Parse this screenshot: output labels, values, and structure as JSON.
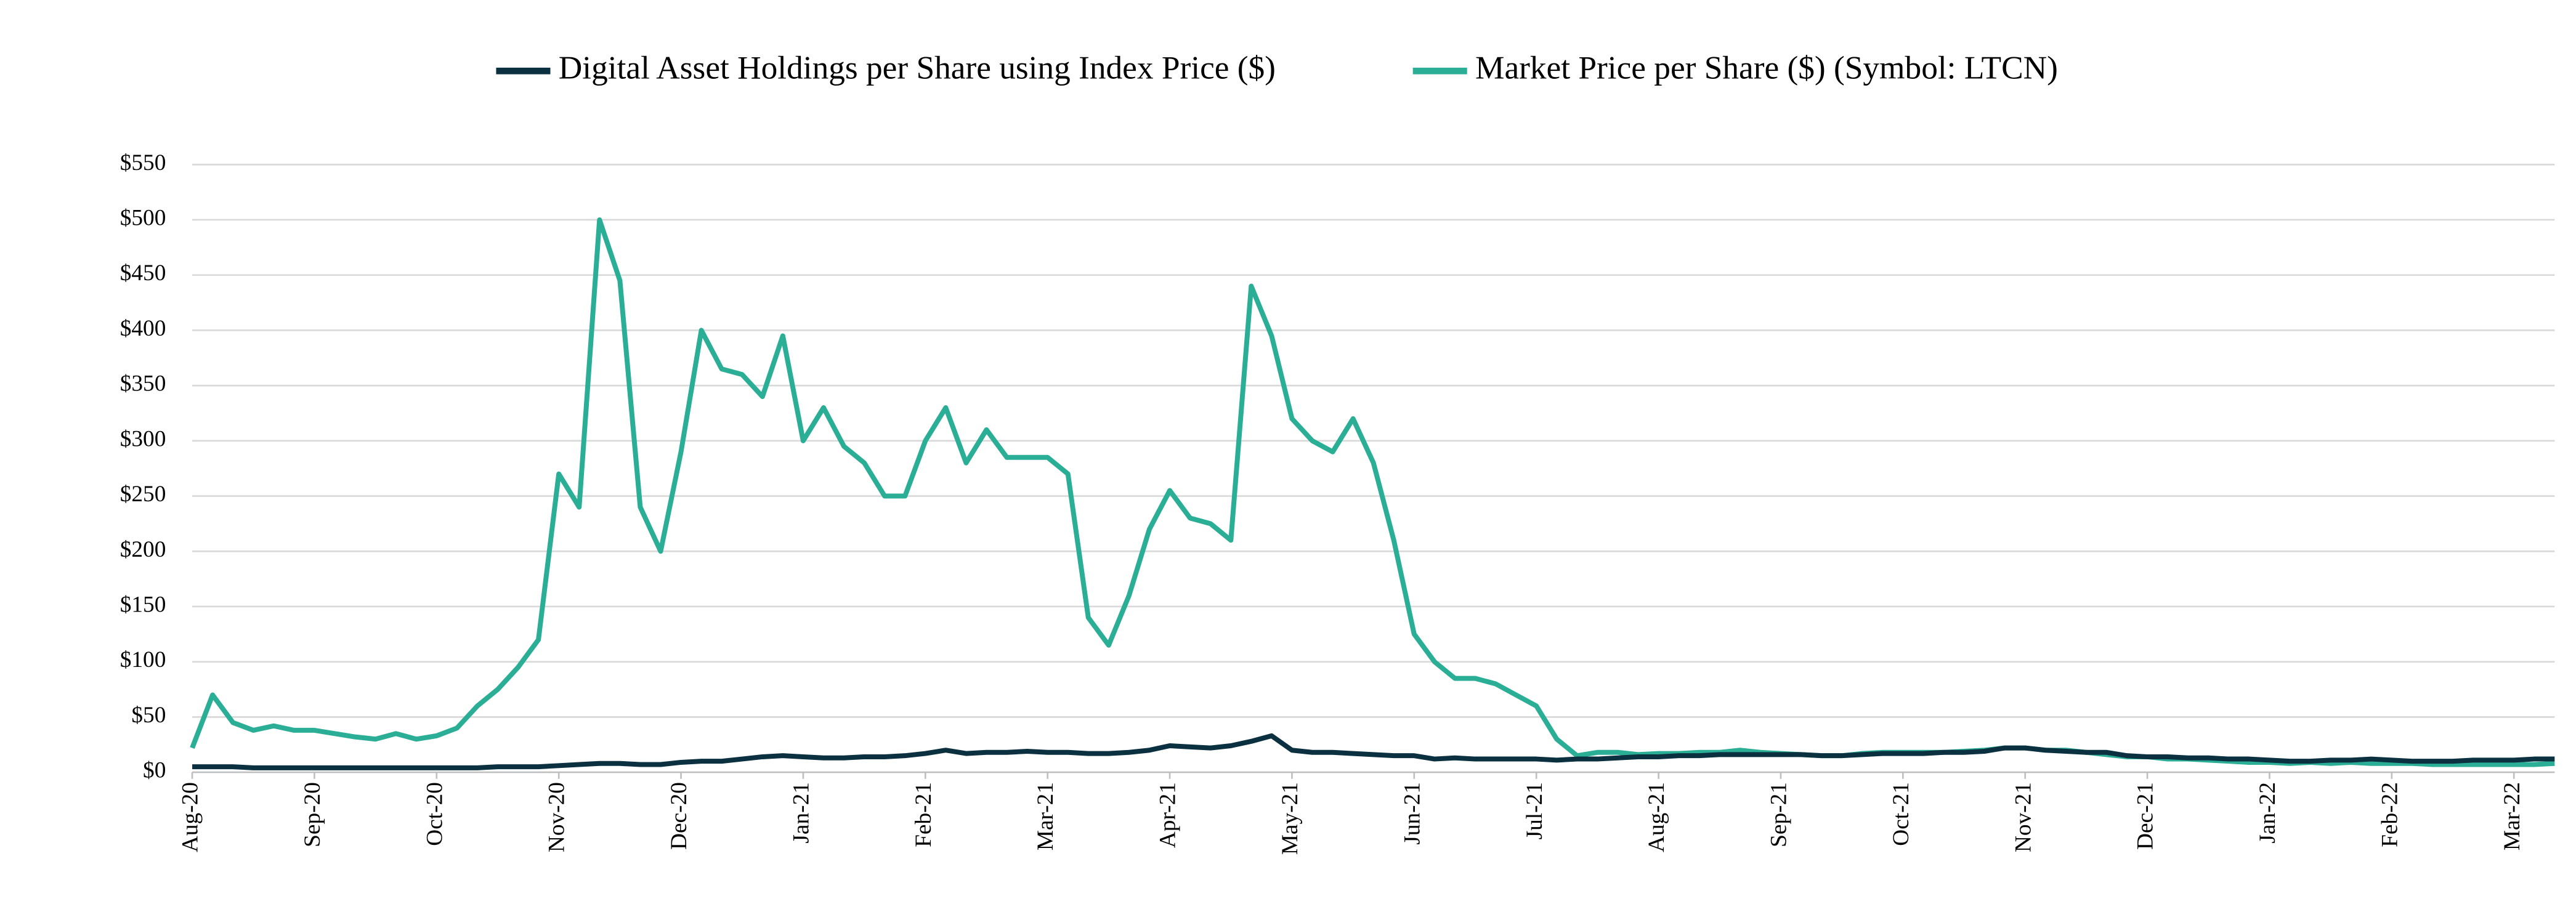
{
  "chart_data": {
    "type": "line",
    "categories": [
      "Aug-20",
      null,
      null,
      null,
      null,
      null,
      "Sep-20",
      null,
      null,
      null,
      null,
      null,
      "Oct-20",
      null,
      null,
      null,
      null,
      null,
      "Nov-20",
      null,
      null,
      null,
      null,
      null,
      "Dec-20",
      null,
      null,
      null,
      null,
      null,
      "Jan-21",
      null,
      null,
      null,
      null,
      null,
      "Feb-21",
      null,
      null,
      null,
      null,
      null,
      "Mar-21",
      null,
      null,
      null,
      null,
      null,
      "Apr-21",
      null,
      null,
      null,
      null,
      null,
      "May-21",
      null,
      null,
      null,
      null,
      null,
      "Jun-21",
      null,
      null,
      null,
      null,
      null,
      "Jul-21",
      null,
      null,
      null,
      null,
      null,
      "Aug-21",
      null,
      null,
      null,
      null,
      null,
      "Sep-21",
      null,
      null,
      null,
      null,
      null,
      "Oct-21",
      null,
      null,
      null,
      null,
      null,
      "Nov-21",
      null,
      null,
      null,
      null,
      null,
      "Dec-21",
      null,
      null,
      null,
      null,
      null,
      "Jan-22",
      null,
      null,
      null,
      null,
      null,
      "Feb-22",
      null,
      null,
      null,
      null,
      null,
      "Mar-22",
      null,
      null
    ],
    "series": [
      {
        "name": "Digital Asset Holdings per Share using Index Price ($)",
        "color": "#0b3040",
        "values": [
          5,
          5,
          5,
          4,
          4,
          4,
          4,
          4,
          4,
          4,
          4,
          4,
          4,
          4,
          4,
          5,
          5,
          5,
          6,
          7,
          8,
          8,
          7,
          7,
          9,
          10,
          10,
          12,
          14,
          15,
          14,
          13,
          13,
          14,
          14,
          15,
          17,
          20,
          17,
          18,
          18,
          19,
          18,
          18,
          17,
          17,
          18,
          20,
          24,
          23,
          22,
          24,
          28,
          33,
          20,
          18,
          18,
          17,
          16,
          15,
          15,
          12,
          13,
          12,
          12,
          12,
          12,
          11,
          12,
          12,
          13,
          14,
          14,
          15,
          15,
          16,
          16,
          16,
          16,
          16,
          15,
          15,
          16,
          17,
          17,
          17,
          18,
          18,
          19,
          22,
          22,
          20,
          19,
          18,
          18,
          15,
          14,
          14,
          13,
          13,
          12,
          12,
          11,
          10,
          10,
          11,
          11,
          12,
          11,
          10,
          10,
          10,
          11,
          11,
          11,
          12,
          12
        ]
      },
      {
        "name": "Market Price per Share ($) (Symbol: LTCN)",
        "color": "#2aae96",
        "values": [
          22,
          70,
          45,
          38,
          42,
          38,
          38,
          35,
          32,
          30,
          35,
          30,
          33,
          40,
          60,
          75,
          95,
          120,
          270,
          240,
          500,
          445,
          240,
          200,
          290,
          400,
          365,
          360,
          340,
          395,
          300,
          330,
          295,
          280,
          250,
          250,
          300,
          330,
          280,
          310,
          285,
          285,
          285,
          270,
          140,
          115,
          160,
          220,
          255,
          230,
          225,
          210,
          440,
          395,
          320,
          300,
          290,
          320,
          280,
          210,
          125,
          100,
          85,
          85,
          80,
          70,
          60,
          30,
          15,
          18,
          18,
          16,
          17,
          17,
          18,
          18,
          20,
          18,
          17,
          16,
          15,
          15,
          17,
          18,
          18,
          18,
          18,
          19,
          20,
          22,
          22,
          20,
          20,
          18,
          16,
          14,
          14,
          12,
          12,
          11,
          10,
          9,
          9,
          8,
          9,
          8,
          9,
          8,
          8,
          8,
          7,
          7,
          7,
          7,
          7,
          7,
          8
        ]
      }
    ],
    "ylim": [
      0,
      550
    ],
    "yticks": [
      {
        "value": 0,
        "label": "$0"
      },
      {
        "value": 50,
        "label": "$50"
      },
      {
        "value": 100,
        "label": "$100"
      },
      {
        "value": 150,
        "label": "$150"
      },
      {
        "value": 200,
        "label": "$200"
      },
      {
        "value": 250,
        "label": "$250"
      },
      {
        "value": 300,
        "label": "$300"
      },
      {
        "value": 350,
        "label": "$350"
      },
      {
        "value": 400,
        "label": "$400"
      },
      {
        "value": 450,
        "label": "$450"
      },
      {
        "value": 500,
        "label": "$500"
      },
      {
        "value": 550,
        "label": "$550"
      }
    ],
    "grid": true,
    "legend": "top"
  }
}
